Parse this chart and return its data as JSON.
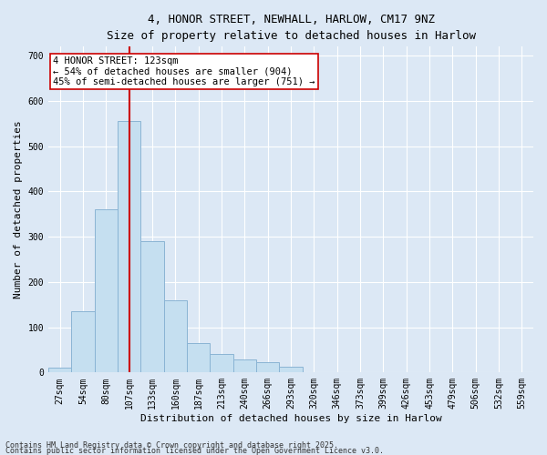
{
  "title_line1": "4, HONOR STREET, NEWHALL, HARLOW, CM17 9NZ",
  "title_line2": "Size of property relative to detached houses in Harlow",
  "xlabel": "Distribution of detached houses by size in Harlow",
  "ylabel": "Number of detached properties",
  "bin_labels": [
    "27sqm",
    "54sqm",
    "80sqm",
    "107sqm",
    "133sqm",
    "160sqm",
    "187sqm",
    "213sqm",
    "240sqm",
    "266sqm",
    "293sqm",
    "320sqm",
    "346sqm",
    "373sqm",
    "399sqm",
    "426sqm",
    "453sqm",
    "479sqm",
    "506sqm",
    "532sqm",
    "559sqm"
  ],
  "bar_values": [
    10,
    135,
    360,
    555,
    290,
    160,
    65,
    40,
    28,
    22,
    12,
    0,
    0,
    0,
    0,
    0,
    0,
    0,
    0,
    0,
    0
  ],
  "bar_color": "#c5dff0",
  "bar_edgecolor": "#8ab4d4",
  "vline_x_index": 3,
  "vline_color": "#cc0000",
  "annotation_text": "4 HONOR STREET: 123sqm\n← 54% of detached houses are smaller (904)\n45% of semi-detached houses are larger (751) →",
  "annotation_box_facecolor": "#ffffff",
  "annotation_box_edgecolor": "#cc0000",
  "ylim": [
    0,
    720
  ],
  "yticks": [
    0,
    100,
    200,
    300,
    400,
    500,
    600,
    700
  ],
  "footnote1": "Contains HM Land Registry data © Crown copyright and database right 2025.",
  "footnote2": "Contains public sector information licensed under the Open Government Licence v3.0.",
  "fig_facecolor": "#dce8f5",
  "plot_facecolor": "#dce8f5",
  "title_fontsize": 9,
  "subtitle_fontsize": 8.5,
  "ylabel_fontsize": 8,
  "xlabel_fontsize": 8,
  "tick_fontsize": 7,
  "annot_fontsize": 7.5,
  "footnote_fontsize": 6
}
